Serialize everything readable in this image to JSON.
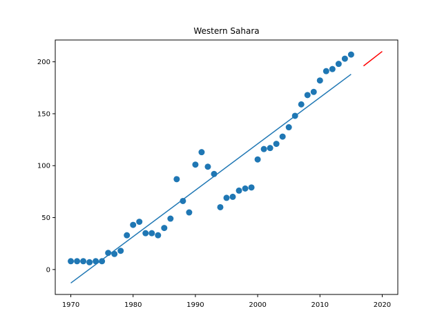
{
  "chart_data": {
    "type": "scatter",
    "title": "Western Sahara",
    "xlabel": "",
    "ylabel": "",
    "xlim": [
      1967.5,
      2022.5
    ],
    "ylim": [
      -24,
      221
    ],
    "x_ticks": [
      1970,
      1980,
      1990,
      2000,
      2010,
      2020
    ],
    "y_ticks": [
      0,
      50,
      100,
      150,
      200
    ],
    "grid": false,
    "legend": "none",
    "series": [
      {
        "kind": "scatter",
        "color": "#1f77b4",
        "x": [
          1970,
          1971,
          1972,
          1973,
          1974,
          1975,
          1976,
          1977,
          1978,
          1979,
          1980,
          1981,
          1982,
          1983,
          1984,
          1985,
          1986,
          1987,
          1988,
          1989,
          1990,
          1991,
          1992,
          1993,
          1994,
          1995,
          1996,
          1997,
          1998,
          1999,
          2000,
          2001,
          2002,
          2003,
          2004,
          2005,
          2006,
          2007,
          2008,
          2009,
          2010,
          2011,
          2012,
          2013,
          2014,
          2015
        ],
        "y": [
          8,
          8,
          8,
          7,
          8,
          8,
          16,
          15,
          18,
          33,
          43,
          46,
          35,
          35,
          33,
          40,
          49,
          87,
          66,
          55,
          101,
          113,
          99,
          92,
          60,
          69,
          70,
          76,
          78,
          79,
          106,
          116,
          117,
          121,
          128,
          137,
          148,
          159,
          168,
          171,
          182,
          191,
          193,
          198,
          203,
          207
        ]
      },
      {
        "kind": "line",
        "color": "#1f77b4",
        "x": [
          1970,
          2015
        ],
        "y": [
          -13,
          188
        ]
      },
      {
        "kind": "line",
        "color": "#ff0000",
        "x": [
          2017,
          2020
        ],
        "y": [
          196,
          210
        ]
      }
    ]
  }
}
